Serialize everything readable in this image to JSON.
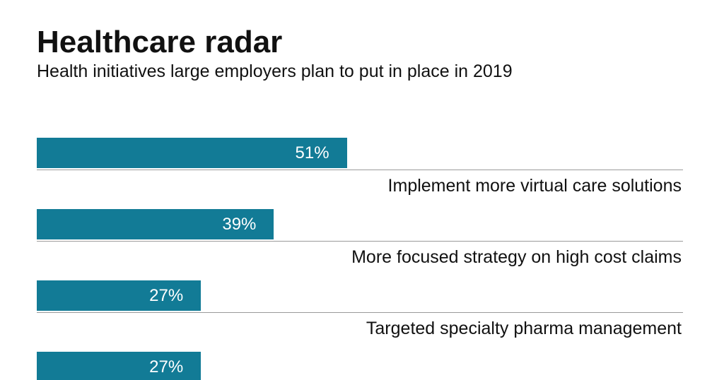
{
  "title": "Healthcare radar",
  "subtitle": "Health initiatives large employers plan to put in place in 2019",
  "colors": {
    "bar": "#127b96",
    "bar_text": "#ffffff",
    "rule": "#9a9a9a"
  },
  "chart_data": {
    "type": "bar",
    "orientation": "horizontal",
    "title": "Healthcare radar",
    "subtitle": "Health initiatives large employers plan to put in place in 2019",
    "categories": [
      "Implement more virtual care solutions",
      "More focused strategy on high cost claims",
      "Targeted specialty pharma management",
      ""
    ],
    "values": [
      51,
      39,
      27,
      27
    ],
    "value_labels": [
      "51%",
      "39%",
      "27%",
      "27%"
    ],
    "unit": "%",
    "xlim": [
      0,
      100
    ],
    "grid": false,
    "legend": "none"
  }
}
